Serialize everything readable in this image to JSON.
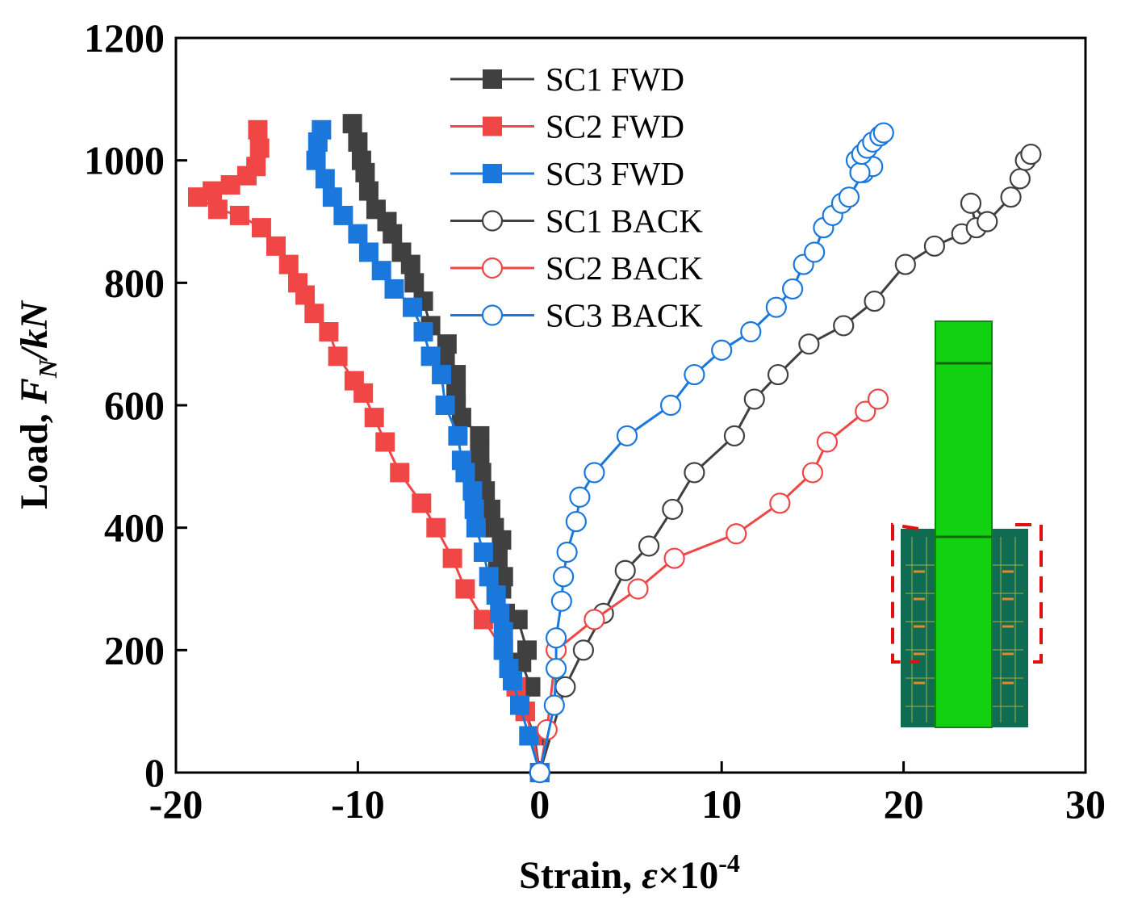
{
  "chart_data": {
    "type": "line",
    "title": "",
    "xlabel": "Strain, ε×10⁻⁴",
    "xlabel_parts": {
      "prefix": "Strain, ",
      "symbol": "ε",
      "times": "×10",
      "exp": "-4"
    },
    "ylabel": "Load, F_N /kN",
    "ylabel_parts": {
      "prefix": "Load, ",
      "symbol": "F",
      "sub": "N",
      "suffix": "/kN"
    },
    "xlim": [
      -20,
      30
    ],
    "ylim": [
      0,
      1200
    ],
    "xticks": [
      -20,
      -10,
      0,
      10,
      20,
      30
    ],
    "xtick_labels": [
      "-20",
      "-10",
      "0",
      "10",
      "20",
      "30"
    ],
    "yticks": [
      0,
      200,
      400,
      600,
      800,
      1000,
      1200
    ],
    "ytick_labels": [
      "0",
      "200",
      "400",
      "600",
      "800",
      "1000",
      "1200"
    ],
    "grid": false,
    "legend_position": "top-center",
    "series": [
      {
        "name": "SC1 FWD",
        "color": "#404040",
        "marker": "square-filled",
        "points": [
          [
            0,
            0
          ],
          [
            -0.3,
            60
          ],
          [
            -0.8,
            100
          ],
          [
            -0.5,
            140
          ],
          [
            -1.0,
            180
          ],
          [
            -0.7,
            200
          ],
          [
            -1.2,
            250
          ],
          [
            -1.9,
            260
          ],
          [
            -2.1,
            300
          ],
          [
            -2.0,
            320
          ],
          [
            -2.3,
            350
          ],
          [
            -2.1,
            380
          ],
          [
            -2.5,
            400
          ],
          [
            -2.7,
            430
          ],
          [
            -3.0,
            460
          ],
          [
            -3.2,
            490
          ],
          [
            -3.3,
            520
          ],
          [
            -3.3,
            550
          ],
          [
            -4.3,
            580
          ],
          [
            -4.6,
            600
          ],
          [
            -4.6,
            620
          ],
          [
            -4.6,
            650
          ],
          [
            -5.2,
            670
          ],
          [
            -5.1,
            700
          ],
          [
            -6.0,
            730
          ],
          [
            -6.4,
            770
          ],
          [
            -6.9,
            800
          ],
          [
            -7.1,
            830
          ],
          [
            -7.6,
            850
          ],
          [
            -8.1,
            880
          ],
          [
            -8.4,
            900
          ],
          [
            -9.0,
            920
          ],
          [
            -9.4,
            950
          ],
          [
            -9.6,
            980
          ],
          [
            -9.8,
            1000
          ],
          [
            -10.0,
            1030
          ],
          [
            -10.3,
            1060
          ]
        ]
      },
      {
        "name": "SC2 FWD",
        "color": "#f04646",
        "marker": "square-filled",
        "points": [
          [
            0,
            0
          ],
          [
            -0.4,
            60
          ],
          [
            -0.8,
            100
          ],
          [
            -1.3,
            140
          ],
          [
            -2.0,
            200
          ],
          [
            -3.1,
            250
          ],
          [
            -4.1,
            300
          ],
          [
            -4.8,
            350
          ],
          [
            -5.7,
            400
          ],
          [
            -6.5,
            440
          ],
          [
            -7.7,
            490
          ],
          [
            -8.5,
            540
          ],
          [
            -9.1,
            580
          ],
          [
            -9.7,
            620
          ],
          [
            -10.2,
            640
          ],
          [
            -11.1,
            680
          ],
          [
            -11.6,
            720
          ],
          [
            -12.4,
            750
          ],
          [
            -12.9,
            780
          ],
          [
            -13.3,
            800
          ],
          [
            -13.8,
            830
          ],
          [
            -14.5,
            860
          ],
          [
            -15.3,
            890
          ],
          [
            -16.5,
            910
          ],
          [
            -17.7,
            920
          ],
          [
            -18.8,
            940
          ],
          [
            -18.0,
            950
          ],
          [
            -17.0,
            960
          ],
          [
            -16.1,
            975
          ],
          [
            -15.6,
            990
          ],
          [
            -15.4,
            1020
          ],
          [
            -15.5,
            1050
          ]
        ]
      },
      {
        "name": "SC3 FWD",
        "color": "#1a78dc",
        "marker": "square-filled",
        "points": [
          [
            0,
            0
          ],
          [
            -0.6,
            60
          ],
          [
            -1.1,
            110
          ],
          [
            -1.5,
            150
          ],
          [
            -1.7,
            170
          ],
          [
            -2.0,
            200
          ],
          [
            -2.0,
            230
          ],
          [
            -2.2,
            260
          ],
          [
            -2.4,
            290
          ],
          [
            -2.8,
            320
          ],
          [
            -3.1,
            360
          ],
          [
            -3.5,
            400
          ],
          [
            -3.6,
            430
          ],
          [
            -3.7,
            460
          ],
          [
            -4.1,
            490
          ],
          [
            -4.3,
            510
          ],
          [
            -4.5,
            550
          ],
          [
            -5.2,
            600
          ],
          [
            -5.4,
            650
          ],
          [
            -6.0,
            680
          ],
          [
            -6.4,
            720
          ],
          [
            -7.0,
            760
          ],
          [
            -8.0,
            790
          ],
          [
            -8.7,
            820
          ],
          [
            -9.4,
            850
          ],
          [
            -10.0,
            880
          ],
          [
            -10.8,
            910
          ],
          [
            -11.4,
            940
          ],
          [
            -11.8,
            970
          ],
          [
            -12.3,
            1000
          ],
          [
            -12.2,
            1030
          ],
          [
            -12.0,
            1050
          ]
        ]
      },
      {
        "name": "SC1 BACK",
        "color": "#404040",
        "marker": "circle-open",
        "points": [
          [
            0,
            0
          ],
          [
            1.4,
            140
          ],
          [
            2.4,
            200
          ],
          [
            3.5,
            260
          ],
          [
            4.7,
            330
          ],
          [
            6.0,
            370
          ],
          [
            7.3,
            430
          ],
          [
            8.5,
            490
          ],
          [
            10.7,
            550
          ],
          [
            11.8,
            610
          ],
          [
            13.1,
            650
          ],
          [
            14.8,
            700
          ],
          [
            16.7,
            730
          ],
          [
            18.4,
            770
          ],
          [
            20.1,
            830
          ],
          [
            21.7,
            860
          ],
          [
            23.2,
            880
          ],
          [
            24.0,
            890
          ],
          [
            23.7,
            930
          ],
          [
            24.6,
            900
          ],
          [
            25.9,
            940
          ],
          [
            26.4,
            970
          ],
          [
            26.7,
            1000
          ],
          [
            27.0,
            1010
          ]
        ]
      },
      {
        "name": "SC2 BACK",
        "color": "#f04646",
        "marker": "circle-open",
        "points": [
          [
            0,
            0
          ],
          [
            0.4,
            70
          ],
          [
            0.9,
            200
          ],
          [
            3.0,
            250
          ],
          [
            5.4,
            300
          ],
          [
            7.4,
            350
          ],
          [
            10.8,
            390
          ],
          [
            13.2,
            440
          ],
          [
            15.0,
            490
          ],
          [
            15.8,
            540
          ],
          [
            17.9,
            590
          ],
          [
            18.6,
            610
          ]
        ]
      },
      {
        "name": "SC3 BACK",
        "color": "#1a78dc",
        "marker": "circle-open",
        "points": [
          [
            0,
            0
          ],
          [
            0.8,
            110
          ],
          [
            0.9,
            170
          ],
          [
            0.9,
            220
          ],
          [
            1.2,
            280
          ],
          [
            1.3,
            320
          ],
          [
            1.5,
            360
          ],
          [
            2.0,
            410
          ],
          [
            2.2,
            450
          ],
          [
            3.0,
            490
          ],
          [
            4.8,
            550
          ],
          [
            7.2,
            600
          ],
          [
            8.5,
            650
          ],
          [
            10.0,
            690
          ],
          [
            11.6,
            720
          ],
          [
            13.0,
            760
          ],
          [
            13.9,
            790
          ],
          [
            14.5,
            830
          ],
          [
            15.1,
            850
          ],
          [
            15.6,
            890
          ],
          [
            16.1,
            910
          ],
          [
            16.6,
            930
          ],
          [
            17.0,
            940
          ],
          [
            17.8,
            980
          ],
          [
            18.3,
            990
          ],
          [
            17.4,
            1000
          ],
          [
            17.6,
            980
          ],
          [
            17.7,
            1010
          ],
          [
            18.0,
            1020
          ],
          [
            18.3,
            1030
          ],
          [
            18.7,
            1040
          ],
          [
            18.9,
            1045
          ]
        ]
      }
    ]
  },
  "inset": {
    "description": "specimen model",
    "colors": {
      "column": "#11d111",
      "column_dark": "#0a9a0a",
      "base": "#0f6b52",
      "highlight_box": "#e01010",
      "rebar": "#c8a030"
    }
  }
}
